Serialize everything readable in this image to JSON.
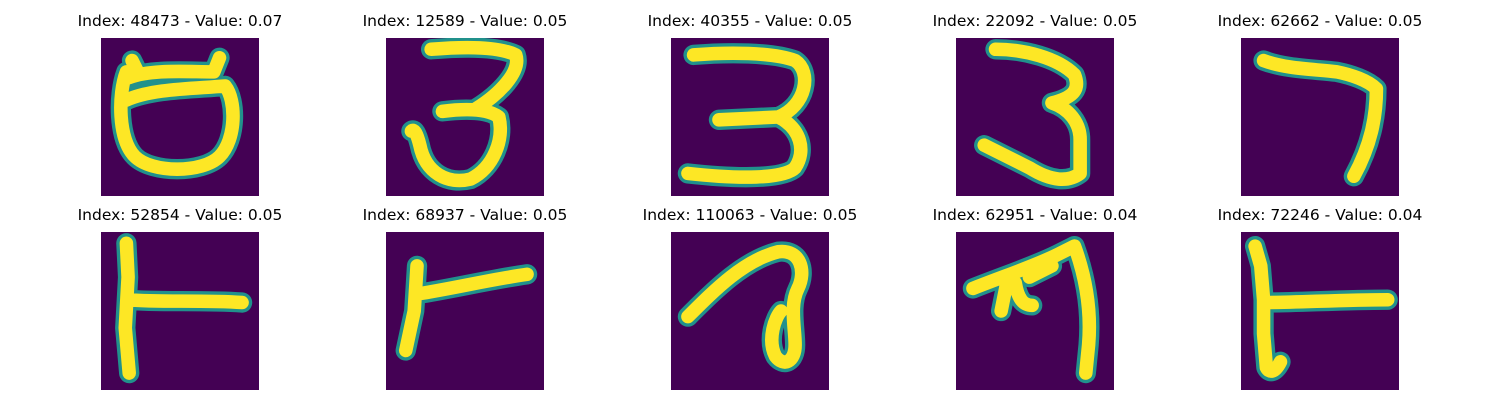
{
  "colors": {
    "background": "#440154",
    "foreground": "#fde725",
    "edge": "#21918c"
  },
  "panels": [
    {
      "title": "Index: 48473 - Value: 0.07",
      "index": 48473,
      "value": 0.07
    },
    {
      "title": "Index: 12589 - Value: 0.05",
      "index": 12589,
      "value": 0.05
    },
    {
      "title": "Index: 40355 - Value: 0.05",
      "index": 40355,
      "value": 0.05
    },
    {
      "title": "Index: 22092 - Value: 0.05",
      "index": 22092,
      "value": 0.05
    },
    {
      "title": "Index: 62662 - Value: 0.05",
      "index": 62662,
      "value": 0.05
    },
    {
      "title": "Index: 52854 - Value: 0.05",
      "index": 52854,
      "value": 0.05
    },
    {
      "title": "Index: 68937 - Value: 0.05",
      "index": 68937,
      "value": 0.05
    },
    {
      "title": "Index: 110063 - Value: 0.05",
      "index": 110063,
      "value": 0.05
    },
    {
      "title": "Index: 62951 - Value: 0.04",
      "index": 62951,
      "value": 0.04
    },
    {
      "title": "Index: 72246 - Value: 0.04",
      "index": 72246,
      "value": 0.04
    }
  ]
}
